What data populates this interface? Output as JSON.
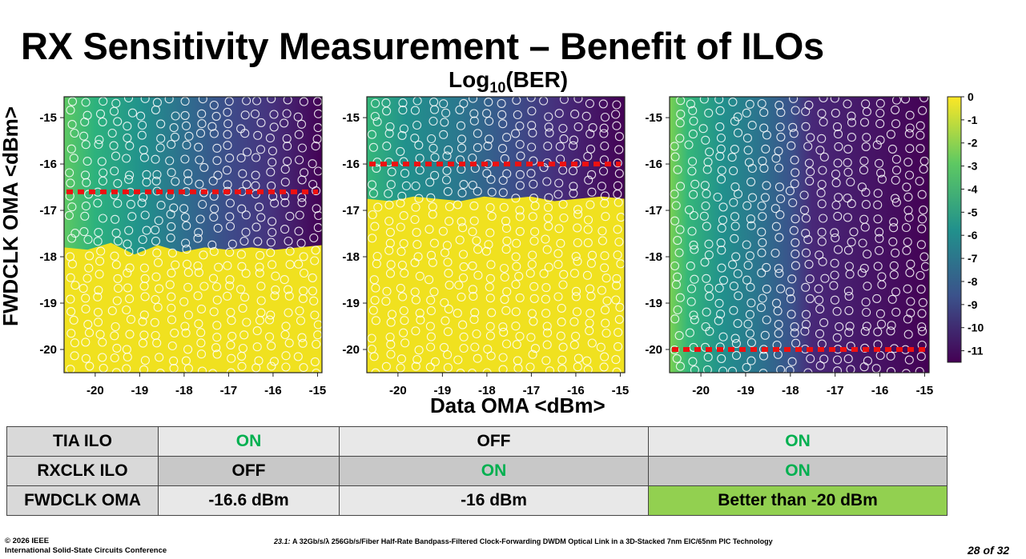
{
  "slide": {
    "title": "RX Sensitivity Measurement – Benefit of ILOs",
    "subtitle_main": "Log",
    "subtitle_sub": "10",
    "subtitle_tail": "(BER)",
    "y_axis_label": "FWDCLK OMA <dBm>",
    "x_axis_label": "Data OMA <dBm>"
  },
  "chart_data": [
    {
      "type": "heatmap",
      "panel": "left",
      "x_ticks": [
        "-20",
        "-19",
        "-18",
        "-17",
        "-16",
        "-15"
      ],
      "y_ticks": [
        "-15",
        "-16",
        "-17",
        "-18",
        "-19",
        "-20"
      ],
      "xlim": [
        -20.7,
        -14.9
      ],
      "ylim": [
        -20.5,
        -14.55
      ],
      "threshold_line_dBm": -16.6,
      "boundary_y": [
        -17.8,
        -17.85,
        -17.7,
        -17.95,
        -17.75,
        -17.9,
        -17.8,
        -17.85,
        -17.8,
        -17.85,
        -17.8,
        -17.75
      ],
      "description_values": "low FWDCLK OMA region high BER (log10 ~ 0), above boundary BER falls from -3 at -20.7 dBm data OMA to -11 at -15 dBm"
    },
    {
      "type": "heatmap",
      "panel": "middle",
      "x_ticks": [
        "-20",
        "-19",
        "-18",
        "-17",
        "-16",
        "-15"
      ],
      "y_ticks": [
        "-15",
        "-16",
        "-17",
        "-18",
        "-19",
        "-20"
      ],
      "xlim": [
        -20.7,
        -14.9
      ],
      "ylim": [
        -20.5,
        -14.55
      ],
      "threshold_line_dBm": -16.0,
      "boundary_y": [
        -16.75,
        -16.8,
        -16.7,
        -16.75,
        -16.8,
        -16.7,
        -16.75,
        -16.7,
        -16.8,
        -16.75,
        -16.7,
        -16.75
      ]
    },
    {
      "type": "heatmap",
      "panel": "right",
      "x_ticks": [
        "-20",
        "-19",
        "-18",
        "-17",
        "-16",
        "-15"
      ],
      "y_ticks": [
        "-15",
        "-16",
        "-17",
        "-18",
        "-19",
        "-20"
      ],
      "xlim": [
        -20.7,
        -14.9
      ],
      "ylim": [
        -20.5,
        -14.55
      ],
      "threshold_line_dBm": -20.0,
      "boundary_y": [
        -20.5,
        -20.5,
        -20.5,
        -20.5,
        -20.5,
        -20.5,
        -20.5,
        -20.5,
        -20.5,
        -20.5,
        -20.5,
        -20.5
      ]
    }
  ],
  "colorbar": {
    "ticks": [
      "0",
      "-1",
      "-2",
      "-3",
      "-4",
      "-5",
      "-6",
      "-7",
      "-8",
      "-9",
      "-10",
      "-11"
    ],
    "range": [
      -11.5,
      0
    ],
    "colors": [
      "#440154",
      "#3b528b",
      "#21918c",
      "#5ec962",
      "#fde725"
    ]
  },
  "table": {
    "rows": [
      {
        "label": "TIA ILO",
        "cells": [
          "ON",
          "OFF",
          "ON"
        ]
      },
      {
        "label": "RXCLK ILO",
        "cells": [
          "OFF",
          "ON",
          "ON"
        ]
      },
      {
        "label": "FWDCLK OMA",
        "cells": [
          "-16.6 dBm",
          "-16 dBm",
          "Better than -20 dBm"
        ]
      }
    ]
  },
  "footer": {
    "copyright": "© 2026 IEEE",
    "conference": "International Solid-State Circuits Conference",
    "paper_id": "23.1:",
    "paper_title": "A 32Gb/s/λ 256Gb/s/Fiber Half-Rate Bandpass-Filtered Clock-Forwarding DWDM Optical Link in a 3D-Stacked 7nm EIC/65nm PIC Technology",
    "page": "28 of 32"
  },
  "colors": {
    "line_red": "#ee1111",
    "on_green": "#00b050",
    "highlight_green": "#92d050",
    "header_gray": "#d9d9d9",
    "cell_gray": "#e8e8e8",
    "cell_dark_gray": "#c8c8c8"
  }
}
